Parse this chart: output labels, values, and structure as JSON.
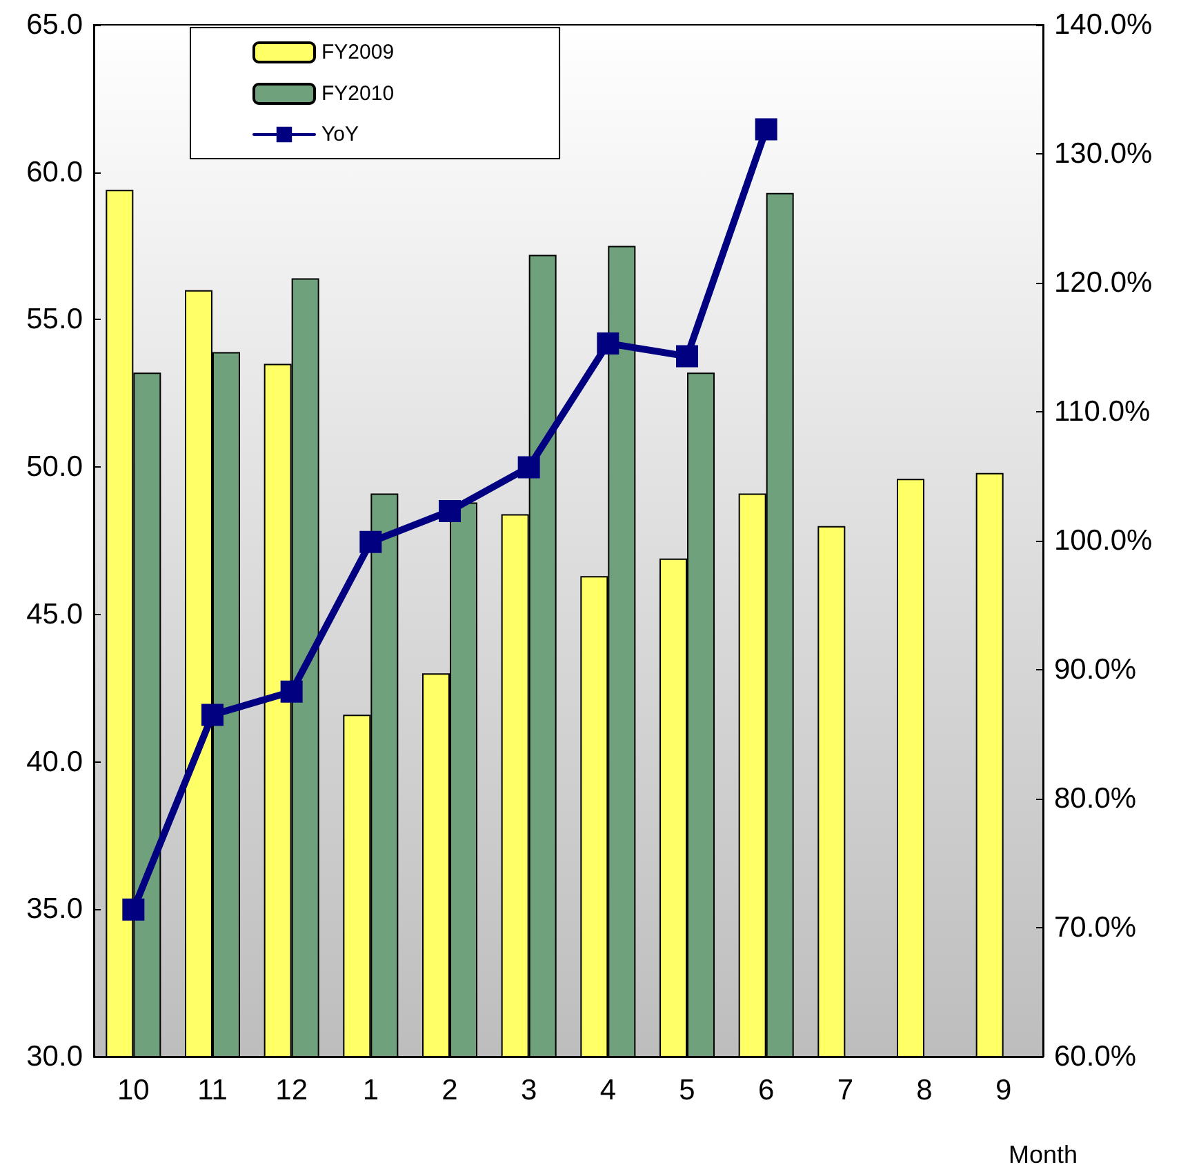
{
  "chart_data": {
    "type": "bar",
    "xlabel": "Month",
    "categories": [
      "10",
      "11",
      "12",
      "1",
      "2",
      "3",
      "4",
      "5",
      "6",
      "7",
      "8",
      "9"
    ],
    "series": [
      {
        "name": "FY2009",
        "color": "#ffff66",
        "values": [
          59.4,
          56.0,
          53.5,
          41.6,
          43.0,
          48.4,
          46.3,
          46.9,
          49.1,
          48.0,
          49.6,
          49.8
        ]
      },
      {
        "name": "FY2010",
        "color": "#6fa27c",
        "values": [
          53.2,
          53.9,
          56.4,
          49.1,
          48.8,
          57.2,
          57.5,
          53.2,
          59.3,
          null,
          null,
          null
        ]
      },
      {
        "name": "YoY",
        "type": "line",
        "axis": "y2",
        "color": "#000080",
        "values": [
          71.4,
          86.5,
          88.3,
          99.9,
          102.3,
          105.7,
          115.3,
          114.3,
          131.9,
          null,
          null,
          null
        ]
      }
    ],
    "ylim": [
      30,
      65
    ],
    "yticks": [
      {
        "value": 30,
        "label": "30.0"
      },
      {
        "value": 35,
        "label": "35.0"
      },
      {
        "value": 40,
        "label": "40.0"
      },
      {
        "value": 45,
        "label": "45.0"
      },
      {
        "value": 50,
        "label": "50.0"
      },
      {
        "value": 55,
        "label": "55.0"
      },
      {
        "value": 60,
        "label": "60.0"
      },
      {
        "value": 65,
        "label": "65.0"
      }
    ],
    "y2lim": [
      60,
      140
    ],
    "y2ticks": [
      {
        "value": 60,
        "label": "60.0%"
      },
      {
        "value": 70,
        "label": "70.0%"
      },
      {
        "value": 80,
        "label": "80.0%"
      },
      {
        "value": 90,
        "label": "90.0%"
      },
      {
        "value": 100,
        "label": "100.0%"
      },
      {
        "value": 110,
        "label": "110.0%"
      },
      {
        "value": 120,
        "label": "120.0%"
      },
      {
        "value": 130,
        "label": "130.0%"
      },
      {
        "value": 140,
        "label": "140.0%"
      }
    ],
    "marker": "square",
    "line_style": "solid",
    "grid": false,
    "legend": "top left"
  }
}
